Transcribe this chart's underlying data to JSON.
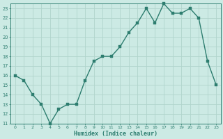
{
  "x": [
    0,
    1,
    2,
    3,
    4,
    5,
    6,
    7,
    8,
    9,
    10,
    11,
    12,
    13,
    14,
    15,
    16,
    17,
    18,
    19,
    20,
    21,
    22,
    23
  ],
  "y": [
    16,
    15.5,
    14,
    13,
    11,
    12.5,
    13,
    13,
    15.5,
    17.5,
    18,
    18,
    19,
    20.5,
    21.5,
    23,
    21.5,
    23.5,
    22.5,
    22.5,
    23,
    22,
    17.5,
    15
  ],
  "xlabel": "Humidex (Indice chaleur)",
  "xlim": [
    -0.5,
    23.5
  ],
  "ylim": [
    11,
    23.5
  ],
  "yticks": [
    11,
    12,
    13,
    14,
    15,
    16,
    17,
    18,
    19,
    20,
    21,
    22,
    23
  ],
  "xticks": [
    0,
    1,
    2,
    3,
    4,
    5,
    6,
    7,
    8,
    9,
    10,
    11,
    12,
    13,
    14,
    15,
    16,
    17,
    18,
    19,
    20,
    21,
    22,
    23
  ],
  "line_color": "#2d7d6f",
  "bg_color": "#cceae4",
  "grid_color": "#b0d4cc",
  "axis_color": "#2d7d6f",
  "tick_color": "#2d7d6f",
  "label_color": "#2d7d6f",
  "markersize": 2.5,
  "linewidth": 1.0,
  "fig_width": 3.2,
  "fig_height": 2.0,
  "dpi": 100
}
